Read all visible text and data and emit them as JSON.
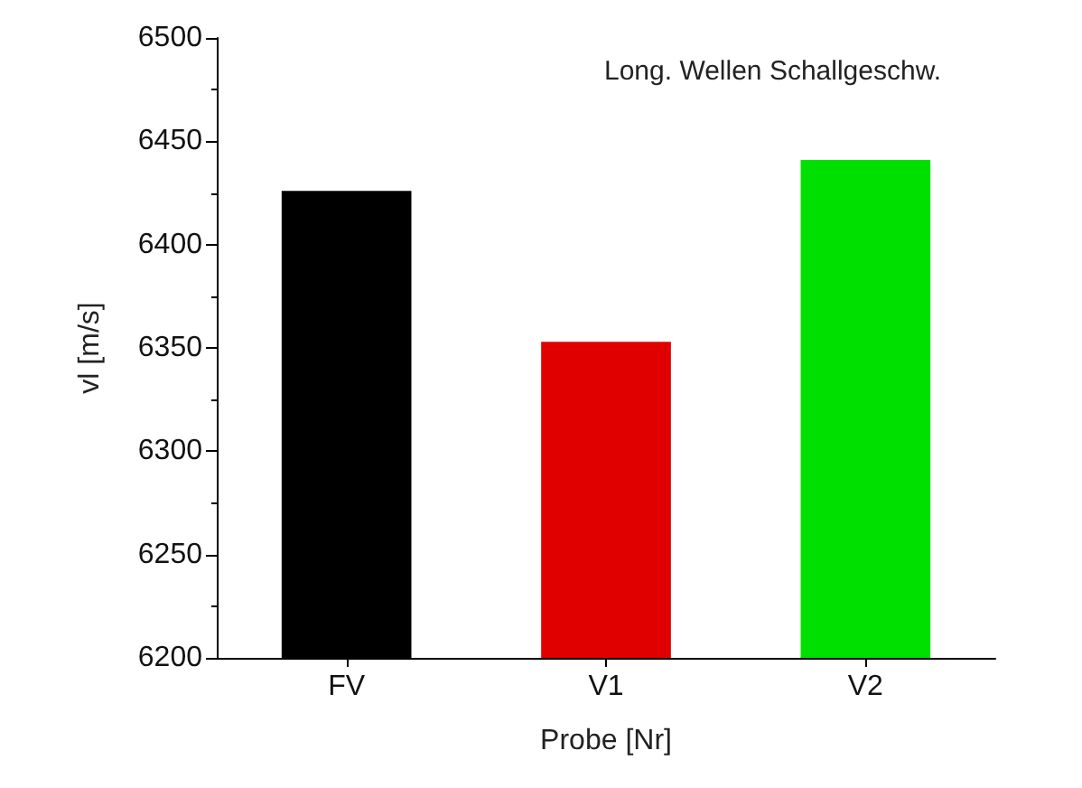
{
  "chart_data": {
    "type": "bar",
    "xlabel": "Probe [Nr]",
    "ylabel": "vl [m/s]",
    "annotations": [
      "Long. Wellen Schallgeschw."
    ],
    "categories": [
      "FV",
      "V1",
      "V2"
    ],
    "values": [
      6426,
      6353,
      6441
    ],
    "colors": [
      "#000000",
      "#e00000",
      "#00e000"
    ],
    "ylim": [
      6200,
      6500
    ],
    "yticks": [
      6200,
      6250,
      6300,
      6350,
      6400,
      6450,
      6500
    ],
    "grid": false
  }
}
